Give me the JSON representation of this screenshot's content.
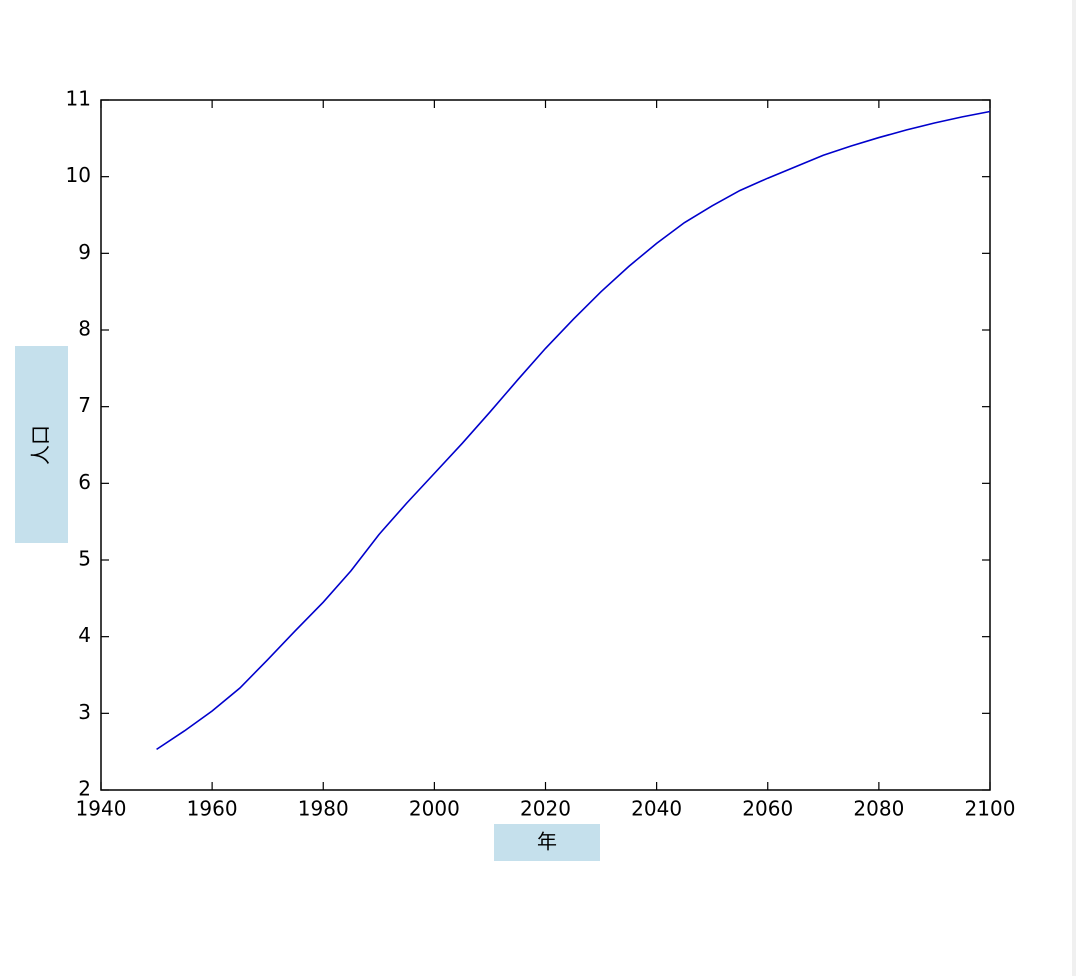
{
  "chart_data": {
    "type": "line",
    "x_label": "年",
    "y_label": "人口",
    "x": [
      1950,
      1955,
      1960,
      1965,
      1970,
      1975,
      1980,
      1985,
      1990,
      1995,
      2000,
      2005,
      2010,
      2015,
      2020,
      2025,
      2030,
      2035,
      2040,
      2045,
      2050,
      2055,
      2060,
      2065,
      2070,
      2075,
      2080,
      2085,
      2090,
      2095,
      2100
    ],
    "series": [
      {
        "color": "#0000cc",
        "values": [
          2.53,
          2.77,
          3.03,
          3.33,
          3.7,
          4.08,
          4.45,
          4.86,
          5.33,
          5.74,
          6.13,
          6.52,
          6.93,
          7.35,
          7.76,
          8.14,
          8.5,
          8.83,
          9.13,
          9.4,
          9.62,
          9.82,
          9.98,
          10.13,
          10.28,
          10.4,
          10.51,
          10.61,
          10.7,
          10.78,
          10.85
        ]
      }
    ],
    "xlim": [
      1940,
      2100
    ],
    "xticks": [
      1940,
      1960,
      1980,
      2000,
      2020,
      2040,
      2060,
      2080,
      2100
    ],
    "ylim": [
      2,
      11
    ],
    "yticks": [
      2,
      3,
      4,
      5,
      6,
      7,
      8,
      9,
      10,
      11
    ]
  }
}
